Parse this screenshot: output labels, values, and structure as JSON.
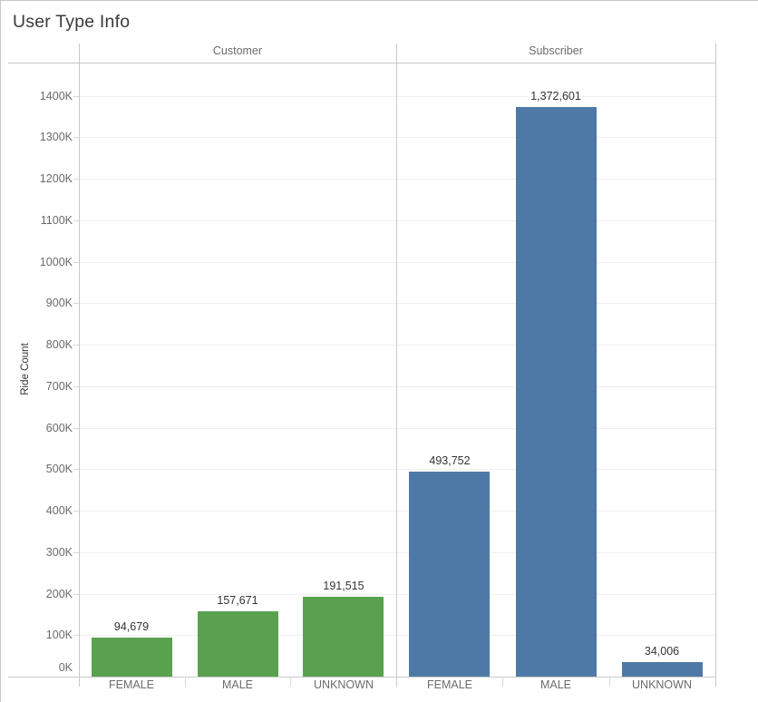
{
  "title": "User Type Info",
  "chart_data": {
    "type": "bar",
    "title": "User Type Info",
    "xlabel": "",
    "ylabel": "Ride Count",
    "ylim": [
      0,
      1480000
    ],
    "grid": true,
    "legend": "none",
    "ytick_values": [
      0,
      100000,
      200000,
      300000,
      400000,
      500000,
      600000,
      700000,
      800000,
      900000,
      1000000,
      1100000,
      1200000,
      1300000,
      1400000
    ],
    "ytick_labels": [
      "0K",
      "100K",
      "200K",
      "300K",
      "400K",
      "500K",
      "600K",
      "700K",
      "800K",
      "900K",
      "1000K",
      "1100K",
      "1200K",
      "1300K",
      "1400K"
    ],
    "facets": [
      {
        "label": "Customer",
        "color": "#59a14f",
        "categories": [
          "FEMALE",
          "MALE",
          "UNKNOWN"
        ],
        "values": [
          94679,
          157671,
          191515
        ],
        "value_labels": [
          "94,679",
          "157,671",
          "191,515"
        ]
      },
      {
        "label": "Subscriber",
        "color": "#4e79a7",
        "categories": [
          "FEMALE",
          "MALE",
          "UNKNOWN"
        ],
        "values": [
          493752,
          1372601,
          34006
        ],
        "value_labels": [
          "493,752",
          "1,372,601",
          "34,006"
        ]
      }
    ]
  }
}
